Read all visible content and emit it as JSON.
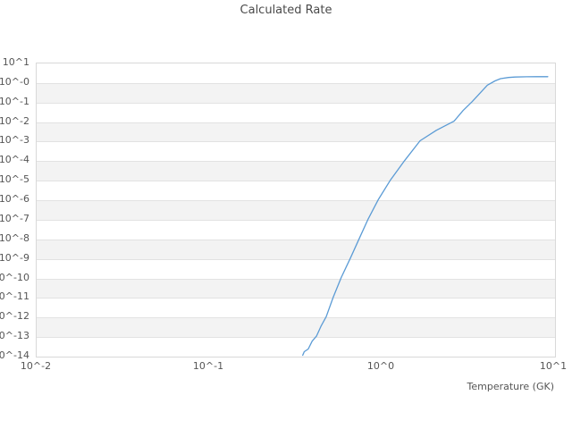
{
  "title": "Calculated Rate",
  "chart_data": {
    "type": "line",
    "title": "Calculated Rate",
    "xlabel": "Temperature (GK)",
    "ylabel": "",
    "x_scale": "log",
    "y_scale": "log",
    "xlim": [
      0.01,
      10.5
    ],
    "ylim": [
      1e-14,
      10
    ],
    "grid": "horizontal-bands",
    "legend": "none",
    "x_ticks": {
      "values": [
        0.01,
        0.1,
        1,
        10
      ],
      "labels": [
        "10^-2",
        "10^-1",
        "10^0",
        "10^1"
      ]
    },
    "y_ticks": {
      "exponents": [
        1,
        0,
        -1,
        -2,
        -3,
        -4,
        -5,
        -6,
        -7,
        -8,
        -9,
        -10,
        -11,
        -12,
        -13,
        -14
      ],
      "labels": [
        "10^1",
        "10^-0",
        "10^-1",
        "10^-2",
        "10^-3",
        "10^-4",
        "10^-5",
        "10^-6",
        "10^-7",
        "10^-8",
        "10^-9",
        "10^-10",
        "10^-11",
        "10^-12",
        "10^-13",
        "10^-14"
      ]
    },
    "series": [
      {
        "name": "calculated-rate",
        "color": "#5b9bd5",
        "points": [
          [
            0.353,
            1.05e-14
          ],
          [
            0.36,
            1.6e-14
          ],
          [
            0.38,
            2.2e-14
          ],
          [
            0.4,
            5.5e-14
          ],
          [
            0.424,
            1e-13
          ],
          [
            0.45,
            3.2e-13
          ],
          [
            0.483,
            1e-12
          ],
          [
            0.531,
            1e-11
          ],
          [
            0.59,
            1e-10
          ],
          [
            0.667,
            1e-09
          ],
          [
            0.751,
            1e-08
          ],
          [
            0.846,
            1e-07
          ],
          [
            0.97,
            1e-06
          ],
          [
            1.14,
            1e-05
          ],
          [
            1.38,
            0.0001
          ],
          [
            1.69,
            0.001
          ],
          [
            2.1,
            0.0034
          ],
          [
            2.66,
            0.01
          ],
          [
            3.0,
            0.035
          ],
          [
            3.39,
            0.1
          ],
          [
            3.8,
            0.3
          ],
          [
            4.15,
            0.7
          ],
          [
            4.6,
            1.15
          ],
          [
            4.95,
            1.5
          ],
          [
            5.5,
            1.72
          ],
          [
            6.0,
            1.82
          ],
          [
            7.0,
            1.88
          ],
          [
            8.0,
            1.9
          ],
          [
            9.3,
            1.9
          ]
        ]
      }
    ]
  }
}
